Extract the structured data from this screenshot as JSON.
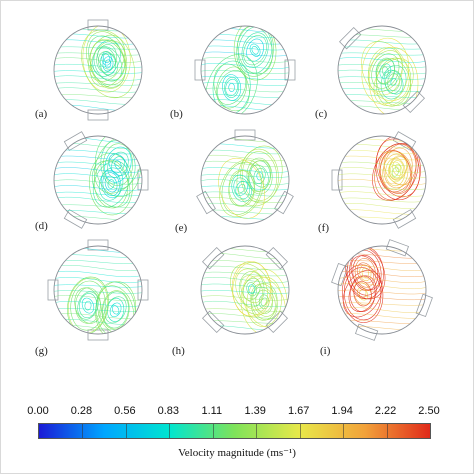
{
  "panels": [
    {
      "label": "(a)",
      "slots": 2,
      "rotation": 90,
      "intensity": 0.35
    },
    {
      "label": "(b)",
      "slots": 2,
      "rotation": 0,
      "intensity": 0.3
    },
    {
      "label": "(c)",
      "slots": 2,
      "rotation": 45,
      "intensity": 0.4
    },
    {
      "label": "(d)",
      "slots": 3,
      "rotation": 0,
      "intensity": 0.3
    },
    {
      "label": "(e)",
      "slots": 3,
      "rotation": 30,
      "intensity": 0.4
    },
    {
      "label": "(f)",
      "slots": 3,
      "rotation": 60,
      "intensity": 0.7
    },
    {
      "label": "(g)",
      "slots": 4,
      "rotation": 0,
      "intensity": 0.35
    },
    {
      "label": "(h)",
      "slots": 4,
      "rotation": 45,
      "intensity": 0.45
    },
    {
      "label": "(i)",
      "slots": 4,
      "rotation": 20,
      "intensity": 0.9
    }
  ],
  "colorbar": {
    "title": "Velocity magnitude (ms⁻¹)",
    "ticks": [
      "0.00",
      "0.28",
      "0.56",
      "0.83",
      "1.11",
      "1.39",
      "1.67",
      "1.94",
      "2.22",
      "2.50"
    ],
    "min": 0,
    "max": 2.5,
    "colors": [
      "#1a1ad6",
      "#00a6ff",
      "#00e5d0",
      "#7fe35a",
      "#e8e84a",
      "#f2a23a",
      "#e02a1a"
    ]
  }
}
